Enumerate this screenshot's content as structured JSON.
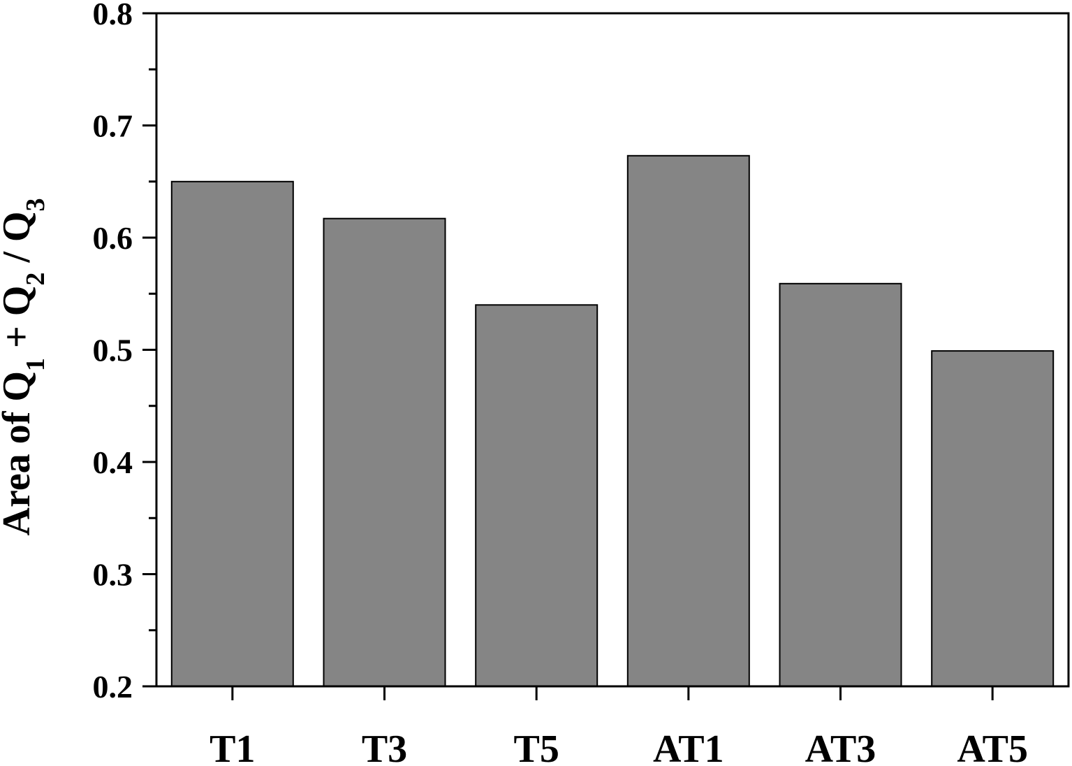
{
  "chart_data": {
    "type": "bar",
    "title": "",
    "xlabel": "",
    "ylabel": {
      "parts": [
        {
          "text": "Area of Q"
        },
        {
          "text": "1",
          "sub": true
        },
        {
          "text": " + Q"
        },
        {
          "text": "2",
          "sub": true
        },
        {
          "text": " / Q"
        },
        {
          "text": "3",
          "sub": true
        }
      ]
    },
    "categories": [
      "T1",
      "T3",
      "T5",
      "AT1",
      "AT3",
      "AT5"
    ],
    "values": [
      0.65,
      0.617,
      0.54,
      0.673,
      0.559,
      0.499
    ],
    "ylim": [
      0.2,
      0.8
    ],
    "yticks": [
      0.2,
      0.3,
      0.4,
      0.5,
      0.6,
      0.7,
      0.8
    ],
    "ytick_labels": [
      "0.2",
      "0.3",
      "0.4",
      "0.5",
      "0.6",
      "0.7",
      "0.8"
    ],
    "grid": false,
    "legend": "none",
    "colors": {
      "bar_fill": "#858585",
      "bar_stroke": "#000000",
      "axis": "#000000"
    }
  }
}
